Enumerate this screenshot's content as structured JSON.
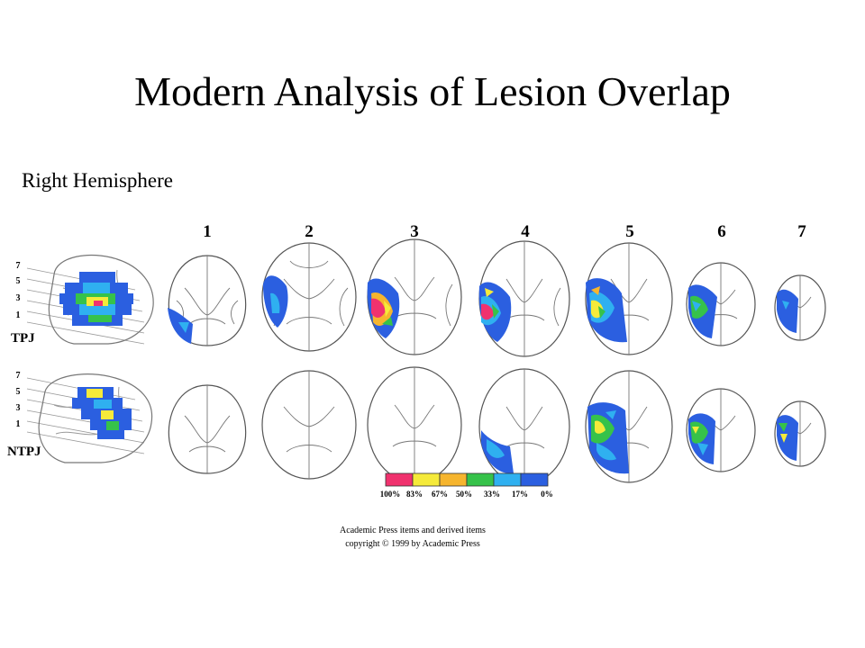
{
  "slide": {
    "title": "Modern Analysis of Lesion Overlap",
    "subtitle": "Right Hemisphere"
  },
  "figure": {
    "slice_numbers": [
      "1",
      "2",
      "3",
      "4",
      "5",
      "6",
      "7"
    ],
    "side_slice_ticks": [
      "7",
      "5",
      "3",
      "1"
    ],
    "rows": [
      {
        "label": "TPJ"
      },
      {
        "label": "NTPJ"
      }
    ],
    "legend": {
      "labels": [
        "100%",
        "83%",
        "67%",
        "50%",
        "33%",
        "17%",
        "0%"
      ],
      "colors": [
        "#f0326e",
        "#f5ea3a",
        "#f6b52e",
        "#36c24a",
        "#2fb0f0",
        "#2b5fe0"
      ]
    },
    "credit": {
      "line1": "Academic Press items and derived items",
      "line2": "copyright © 1999 by Academic Press"
    }
  }
}
